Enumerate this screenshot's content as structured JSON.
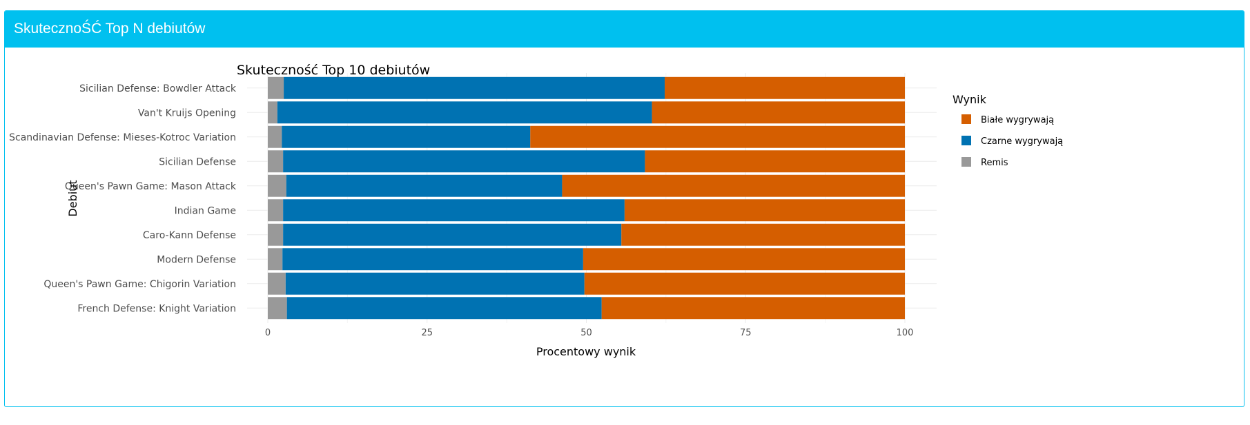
{
  "panel": {
    "title": "SkutecznoŚĆ Top N debiutów"
  },
  "chart_data": {
    "type": "bar",
    "orientation": "horizontal",
    "stacked": true,
    "title": "Skuteczność Top 10 debiutów",
    "xlabel": "Procentowy wynik",
    "ylabel": "Debiut",
    "xlim": [
      0,
      100
    ],
    "xticks": [
      0,
      25,
      50,
      75,
      100
    ],
    "grid": true,
    "legend": {
      "title": "Wynik",
      "position": "right"
    },
    "categories": [
      "Sicilian Defense: Bowdler Attack",
      "Van't Kruijs Opening",
      "Scandinavian Defense: Mieses-Kotroc Variation",
      "Sicilian Defense",
      "Queen's Pawn Game: Mason Attack",
      "Indian Game",
      "Caro-Kann Defense",
      "Modern Defense",
      "Queen's Pawn Game: Chigorin Variation",
      "French Defense: Knight Variation"
    ],
    "series": [
      {
        "name": "Remis",
        "color": "#999999",
        "values": [
          2.5,
          1.5,
          2.2,
          2.4,
          2.9,
          2.4,
          2.4,
          2.3,
          2.8,
          3.0
        ]
      },
      {
        "name": "Czarne wygrywają",
        "color": "#0072b2",
        "values": [
          59.8,
          58.8,
          39.0,
          56.8,
          43.3,
          53.6,
          53.1,
          47.2,
          46.9,
          49.4
        ]
      },
      {
        "name": "Białe wygrywają",
        "color": "#d55e00",
        "values": [
          37.7,
          39.7,
          58.8,
          40.8,
          53.8,
          44.0,
          44.5,
          50.5,
          50.3,
          47.6
        ]
      }
    ],
    "legend_order": [
      "Białe wygrywają",
      "Czarne wygrywają",
      "Remis"
    ]
  }
}
